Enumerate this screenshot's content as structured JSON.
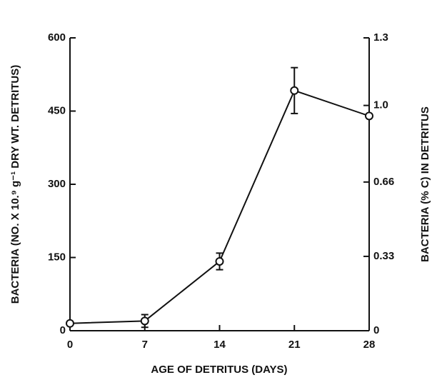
{
  "chart_data": {
    "type": "line",
    "x_label": "AGE OF DETRITUS (DAYS)",
    "y_label": "BACTERIA (NO. X 10.⁹ g⁻¹ DRY WT. DETRITUS)",
    "y2_label": "BACTERIA (% C) IN DETRITUS",
    "x": [
      0,
      7,
      14,
      21,
      28
    ],
    "series": [
      {
        "color": "#111111",
        "values": [
          15,
          20,
          142,
          492,
          440
        ],
        "errors": [
          null,
          13,
          17,
          47,
          null
        ]
      }
    ],
    "xlim": [
      0,
      28
    ],
    "xticks": [
      0,
      7,
      14,
      21,
      28
    ],
    "ylim": [
      0,
      600
    ],
    "yticks": [
      0,
      150,
      300,
      450,
      600
    ],
    "y2lim": [
      0,
      1.3
    ],
    "y2ticks": [
      0,
      0.33,
      0.66,
      {
        "value": 1,
        "label": "1.0"
      },
      1.3
    ],
    "grid": false
  }
}
